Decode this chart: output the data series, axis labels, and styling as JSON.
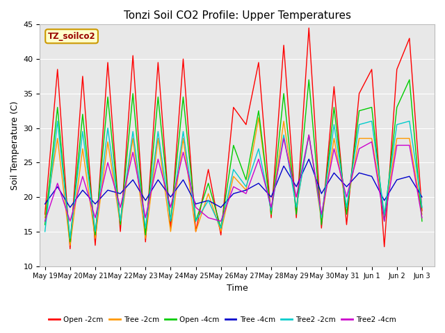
{
  "title": "Tonzi Soil CO2 Profile: Upper Temperatures",
  "xlabel": "Time",
  "ylabel": "Soil Temperature (C)",
  "ylim": [
    10,
    45
  ],
  "dataset_label": "TZ_soilco2",
  "x_tick_labels": [
    "May 19",
    "May 20",
    "May 21",
    "May 22",
    "May 23",
    "May 24",
    "May 25",
    "May 26",
    "May 27",
    "May 28",
    "May 29",
    "May 30",
    "May 31",
    "Jun 1",
    "Jun 2",
    "Jun 3"
  ],
  "series": [
    {
      "name": "Open -2cm",
      "color": "#ff0000",
      "values": [
        17.5,
        38.5,
        12.5,
        37.5,
        13.0,
        39.5,
        15.0,
        40.5,
        13.5,
        39.5,
        15.5,
        40.0,
        15.0,
        24.0,
        14.5,
        33.0,
        30.5,
        39.5,
        17.0,
        42.0,
        17.0,
        44.5,
        15.5,
        36.0,
        16.0,
        35.0,
        38.5,
        12.8,
        38.5,
        43.0,
        18.0
      ]
    },
    {
      "name": "Tree -2cm",
      "color": "#ff9900",
      "values": [
        17.0,
        28.5,
        13.0,
        27.0,
        14.0,
        28.0,
        16.0,
        28.5,
        14.0,
        28.5,
        15.0,
        28.5,
        15.0,
        20.5,
        15.0,
        23.0,
        21.0,
        31.5,
        17.5,
        31.0,
        18.5,
        29.0,
        16.5,
        28.5,
        18.5,
        28.5,
        28.5,
        17.5,
        28.5,
        28.5,
        17.5
      ]
    },
    {
      "name": "Open -4cm",
      "color": "#00cc00",
      "values": [
        16.0,
        33.0,
        13.5,
        32.0,
        14.5,
        34.5,
        16.0,
        35.0,
        14.5,
        34.5,
        16.5,
        34.5,
        16.5,
        22.0,
        15.5,
        27.5,
        22.5,
        32.5,
        17.5,
        35.0,
        17.5,
        37.0,
        16.0,
        33.0,
        17.5,
        32.5,
        33.0,
        16.5,
        33.0,
        37.0,
        16.5
      ]
    },
    {
      "name": "Tree -4cm",
      "color": "#0000cc",
      "values": [
        19.0,
        21.5,
        18.5,
        21.0,
        19.0,
        21.0,
        20.5,
        22.5,
        19.5,
        22.5,
        20.0,
        22.5,
        19.0,
        19.5,
        18.5,
        20.5,
        21.0,
        22.0,
        20.0,
        24.5,
        21.5,
        25.5,
        20.5,
        23.5,
        21.5,
        23.5,
        23.0,
        19.5,
        22.5,
        23.0,
        20.0
      ]
    },
    {
      "name": "Tree2 -2cm",
      "color": "#00cccc",
      "values": [
        15.0,
        31.0,
        14.0,
        29.5,
        15.0,
        30.0,
        16.5,
        29.5,
        15.5,
        29.5,
        16.5,
        29.5,
        16.5,
        19.5,
        15.5,
        24.0,
        21.5,
        27.0,
        18.0,
        29.0,
        18.5,
        29.0,
        17.0,
        30.5,
        18.5,
        30.5,
        31.0,
        17.5,
        30.5,
        31.0,
        18.5
      ]
    },
    {
      "name": "Tree2 -4cm",
      "color": "#cc00cc",
      "values": [
        16.5,
        22.0,
        16.5,
        23.0,
        17.0,
        25.0,
        18.5,
        26.5,
        17.0,
        25.5,
        18.5,
        26.5,
        18.5,
        17.0,
        16.5,
        21.5,
        20.5,
        25.5,
        18.5,
        28.5,
        20.0,
        29.0,
        17.5,
        27.0,
        20.0,
        27.0,
        28.0,
        16.5,
        27.5,
        27.5,
        17.0
      ]
    }
  ]
}
